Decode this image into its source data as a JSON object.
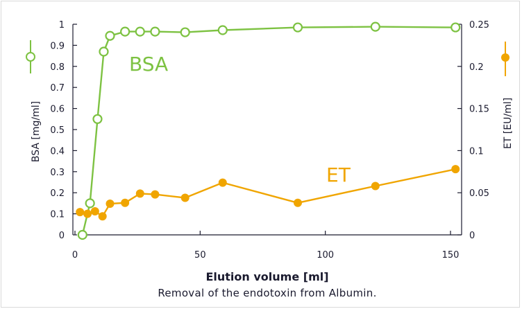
{
  "caption": "Removal of the endotoxin from Albumin.",
  "chart_data": {
    "type": "line",
    "xlabel": "Elution volume [ml]",
    "ylabel_left": "BSA [mg/ml]",
    "ylabel_right": "ET [EU/ml]",
    "xlim": [
      0,
      155
    ],
    "ylim_left": [
      0,
      1
    ],
    "ylim_right": [
      0,
      0.25
    ],
    "x_ticks": [
      0,
      50,
      100,
      150
    ],
    "y_left_ticks": [
      0,
      0.1,
      0.2,
      0.3,
      0.4,
      0.5,
      0.6,
      0.7,
      0.8,
      0.9,
      1
    ],
    "y_left_tick_labels": [
      "0",
      "0.1",
      "0.2",
      "0.3",
      "0.4",
      "0.5",
      "0.6",
      "0.7",
      "0.8",
      "0.9",
      "1"
    ],
    "y_right_ticks": [
      0,
      0.05,
      0.1,
      0.15,
      0.2,
      0.25
    ],
    "y_right_tick_labels": [
      "0",
      "0.05",
      "0.1",
      "0.15",
      "0.2",
      "0.25"
    ],
    "grid": false,
    "series": [
      {
        "name": "BSA",
        "axis": "left",
        "color": "#7dc242",
        "marker": "open-circle",
        "x": [
          3,
          6,
          9,
          11.5,
          14,
          20,
          26,
          32,
          44,
          59,
          89,
          120,
          152
        ],
        "y": [
          0.0,
          0.15,
          0.55,
          0.87,
          0.945,
          0.965,
          0.965,
          0.965,
          0.962,
          0.972,
          0.985,
          0.988,
          0.985
        ]
      },
      {
        "name": "ET",
        "axis": "right",
        "color": "#f0a500",
        "marker": "filled-circle",
        "x": [
          2,
          5,
          8,
          11,
          14,
          20,
          26,
          32,
          44,
          59,
          89,
          120,
          152
        ],
        "y": [
          0.027,
          0.025,
          0.028,
          0.022,
          0.037,
          0.038,
          0.049,
          0.048,
          0.044,
          0.062,
          0.038,
          0.058,
          0.078
        ]
      }
    ]
  }
}
